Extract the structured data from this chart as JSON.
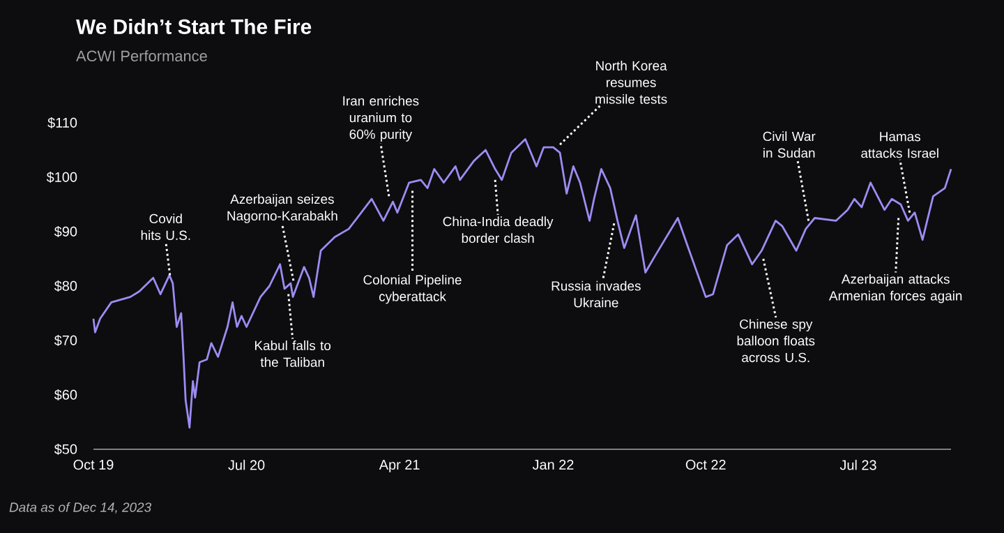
{
  "chart_data": {
    "type": "line",
    "title": "We Didn’t Start The Fire",
    "subtitle": "ACWI Performance",
    "x": [
      "2019-10-01",
      "2019-10-04",
      "2019-10-13",
      "2019-11-02",
      "2019-12-06",
      "2019-12-22",
      "2020-01-16",
      "2020-01-29",
      "2020-02-14",
      "2020-02-20",
      "2020-02-27",
      "2020-03-06",
      "2020-03-10",
      "2020-03-14",
      "2020-03-21",
      "2020-03-27",
      "2020-03-31",
      "2020-04-08",
      "2020-04-21",
      "2020-04-29",
      "2020-05-11",
      "2020-05-28",
      "2020-06-06",
      "2020-06-14",
      "2020-06-22",
      "2020-07-01",
      "2020-07-26",
      "2020-08-11",
      "2020-08-30",
      "2020-09-07",
      "2020-09-18",
      "2020-09-22",
      "2020-10-12",
      "2020-10-21",
      "2020-10-29",
      "2020-11-11",
      "2020-12-06",
      "2020-12-31",
      "2021-02-10",
      "2021-03-03",
      "2021-03-20",
      "2021-03-28",
      "2021-04-18",
      "2021-05-09",
      "2021-05-21",
      "2021-06-02",
      "2021-06-19",
      "2021-07-10",
      "2021-07-18",
      "2021-08-12",
      "2021-09-02",
      "2021-09-19",
      "2021-10-01",
      "2021-10-18",
      "2021-11-12",
      "2021-12-02",
      "2021-12-15",
      "2022-01-01",
      "2022-01-13",
      "2022-01-25",
      "2022-02-06",
      "2022-02-18",
      "2022-03-07",
      "2022-03-15",
      "2022-03-28",
      "2022-04-13",
      "2022-04-26",
      "2022-05-08",
      "2022-05-29",
      "2022-06-15",
      "2022-07-02",
      "2022-08-12",
      "2022-08-29",
      "2022-10-01",
      "2022-10-14",
      "2022-11-08",
      "2022-11-28",
      "2022-12-23",
      "2023-01-09",
      "2023-02-03",
      "2023-02-15",
      "2023-03-12",
      "2023-03-29",
      "2023-04-14",
      "2023-05-22",
      "2023-06-12",
      "2023-06-24",
      "2023-07-07",
      "2023-07-23",
      "2023-08-17",
      "2023-08-30",
      "2023-09-15",
      "2023-09-28",
      "2023-10-10",
      "2023-10-24",
      "2023-11-12",
      "2023-12-03",
      "2023-12-14"
    ],
    "series": [
      {
        "color": "#9d8cf2",
        "values": [
          74,
          71.5,
          74,
          77,
          78,
          79,
          81.5,
          78.5,
          82,
          80.5,
          72.5,
          75,
          67.5,
          59,
          54,
          62.5,
          59.5,
          66,
          66.5,
          69.5,
          67,
          72.5,
          77,
          72.5,
          74.5,
          72.5,
          78,
          80,
          84,
          79.5,
          80.5,
          78,
          83.5,
          81.5,
          78,
          86.5,
          89,
          90.5,
          96,
          92,
          95.5,
          93.5,
          99,
          99.5,
          98,
          101.5,
          99,
          102,
          99.5,
          103,
          105,
          101.5,
          99.5,
          104.5,
          107,
          102,
          105.5,
          105.5,
          104.5,
          97,
          102,
          99,
          92,
          96,
          101.5,
          98,
          92,
          87,
          93,
          82.5,
          85.5,
          92.5,
          87.5,
          78,
          78.5,
          87.5,
          89.5,
          84,
          86.5,
          92,
          91,
          86.5,
          90.5,
          92.5,
          92,
          94,
          96,
          94.5,
          99,
          94,
          96,
          95,
          92,
          93.5,
          88.5,
          96.5,
          98,
          101.5
        ]
      }
    ],
    "xlim": [
      "2019-10-01",
      "2023-12-14"
    ],
    "xticks": [
      {
        "value": "2019-10-01",
        "label": "Oct 19"
      },
      {
        "value": "2020-07-01",
        "label": "Jul 20"
      },
      {
        "value": "2021-04-01",
        "label": "Apr 21"
      },
      {
        "value": "2022-01-01",
        "label": "Jan 22"
      },
      {
        "value": "2022-10-01",
        "label": "Oct 22"
      },
      {
        "value": "2023-07-01",
        "label": "Jul 23"
      }
    ],
    "ylim": [
      50,
      110
    ],
    "yticks": [
      {
        "value": 50,
        "label": "$50"
      },
      {
        "value": 60,
        "label": "$60"
      },
      {
        "value": 70,
        "label": "$70"
      },
      {
        "value": 80,
        "label": "$80"
      },
      {
        "value": 90,
        "label": "$90"
      },
      {
        "value": 100,
        "label": "$100"
      },
      {
        "value": 110,
        "label": "$110"
      }
    ],
    "line_style": "solid",
    "annotations": [
      {
        "text": "Covid hits U.S.",
        "x": "2020-02-15",
        "y": 82
      },
      {
        "text": "Azerbaijan seizes Nagorno-Karabakh",
        "x": "2020-09-23",
        "y": 81
      },
      {
        "text": "Kabul falls to the Taliban",
        "x": "2020-09-14",
        "y": 78.5
      },
      {
        "text": "Iran enriches uranium to 60% purity",
        "x": "2021-03-13",
        "y": 96.5
      },
      {
        "text": "Colonial Pipeline cyberattack",
        "x": "2021-04-24",
        "y": 97.5
      },
      {
        "text": "China-India deadly border clash",
        "x": "2021-09-19",
        "y": 99.5
      },
      {
        "text": "North Korea resumes missile tests",
        "x": "2022-01-13",
        "y": 106
      },
      {
        "text": "Russia invades Ukraine",
        "x": "2022-04-20",
        "y": 91.5
      },
      {
        "text": "Chinese spy balloon floats across U.S.",
        "x": "2023-01-12",
        "y": 85
      },
      {
        "text": "Civil War in Sudan",
        "x": "2023-04-03",
        "y": 92
      },
      {
        "text": "Hamas attacks Israel",
        "x": "2023-10-01",
        "y": 93.5
      },
      {
        "text": "Azerbaijan attacks Armenian forces again",
        "x": "2023-09-11",
        "y": 92.5
      },
      "Data as of Dec 14, 2023"
    ]
  }
}
